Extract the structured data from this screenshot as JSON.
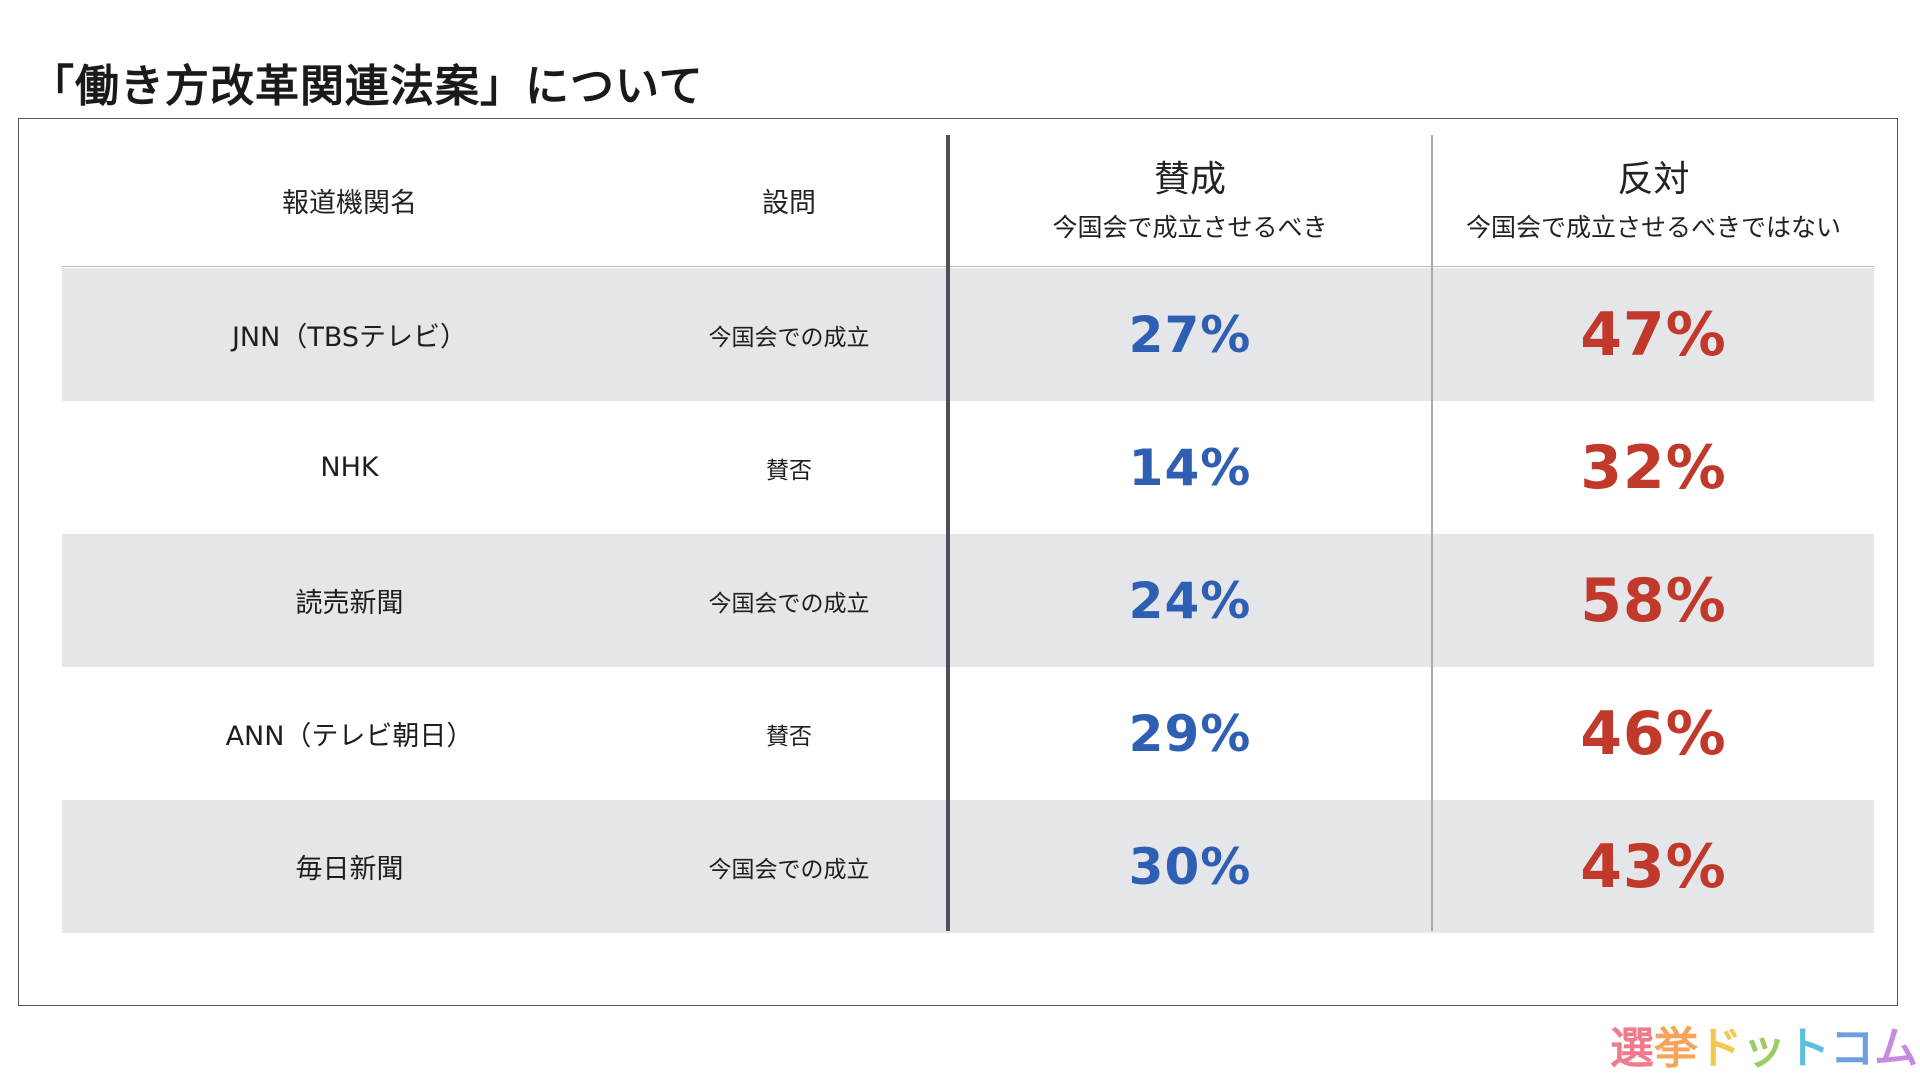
{
  "title": "「働き方改革関連法案」について",
  "colors": {
    "support": "#2f5fb3",
    "oppose": "#c0392b",
    "row_shade": "#e5e6ea"
  },
  "header": {
    "media": "報道機関名",
    "question": "設問",
    "support_main": "賛成",
    "support_sub": "今国会で成立させるべき",
    "oppose_main": "反対",
    "oppose_sub": "今国会で成立させるべきではない"
  },
  "rows": [
    {
      "media": "JNN（TBSテレビ）",
      "question": "今国会での成立",
      "support": "27%",
      "oppose": "47%"
    },
    {
      "media": "NHK",
      "question": "賛否",
      "support": "14%",
      "oppose": "32%"
    },
    {
      "media": "読売新聞",
      "question": "今国会での成立",
      "support": "24%",
      "oppose": "58%"
    },
    {
      "media": "ANN（テレビ朝日）",
      "question": "賛否",
      "support": "29%",
      "oppose": "46%"
    },
    {
      "media": "毎日新聞",
      "question": "今国会での成立",
      "support": "30%",
      "oppose": "43%"
    }
  ],
  "chart_data": {
    "type": "table",
    "title": "「働き方改革関連法案」について",
    "columns": [
      "報道機関名",
      "設問",
      "賛成 今国会で成立させるべき",
      "反対 今国会で成立させるべきではない"
    ],
    "categories": [
      "JNN（TBSテレビ）",
      "NHK",
      "読売新聞",
      "ANN（テレビ朝日）",
      "毎日新聞"
    ],
    "series": [
      {
        "name": "賛成",
        "values": [
          27,
          14,
          24,
          29,
          30
        ]
      },
      {
        "name": "反対",
        "values": [
          47,
          32,
          58,
          46,
          43
        ]
      }
    ]
  },
  "logo": {
    "text": "選挙ドットコム",
    "chars": [
      "選",
      "挙",
      "ド",
      "ッ",
      "ト",
      "コ",
      "ム"
    ],
    "char_colors": [
      "#f07b8c",
      "#f5a45a",
      "#f2c94c",
      "#9ccc65",
      "#5bc0de",
      "#6f9fe0",
      "#c889e0"
    ]
  }
}
